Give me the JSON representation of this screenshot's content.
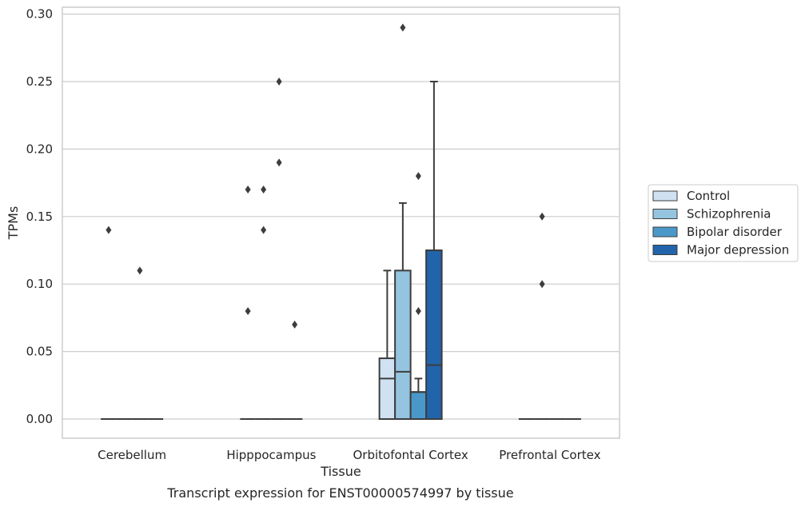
{
  "chart_data": {
    "type": "box",
    "title": "Transcript expression for ENST00000574997 by tissue",
    "xlabel": "Tissue",
    "ylabel": "TPMs",
    "ylim": [
      -0.015,
      0.3035
    ],
    "yticks": [
      "0.00",
      "0.05",
      "0.10",
      "0.15",
      "0.20",
      "0.25",
      "0.30"
    ],
    "ytick_values": [
      0,
      0.05,
      0.1,
      0.15,
      0.2,
      0.25,
      0.3
    ],
    "grid": "horizontal",
    "legend_position": "right",
    "categories": [
      "Cerebellum",
      "Hipppocampus",
      "Orbitofontal Cortex",
      "Prefrontal Cortex"
    ],
    "series": [
      {
        "name": "Control",
        "color": "#d0e1f2",
        "boxes": [
          {
            "q1": 0,
            "median": 0,
            "q3": 0,
            "whisker_low": 0,
            "whisker_high": 0,
            "outliers": [
              0.14
            ]
          },
          {
            "q1": 0,
            "median": 0,
            "q3": 0,
            "whisker_low": 0,
            "whisker_high": 0,
            "outliers": [
              0.17,
              0.08
            ]
          },
          {
            "q1": 0,
            "median": 0.03,
            "q3": 0.045,
            "whisker_low": 0,
            "whisker_high": 0.11,
            "outliers": []
          },
          {
            "q1": 0,
            "median": 0,
            "q3": 0,
            "whisker_low": 0,
            "whisker_high": 0,
            "outliers": []
          }
        ]
      },
      {
        "name": "Schizophrenia",
        "color": "#94c4df",
        "boxes": [
          {
            "q1": 0,
            "median": 0,
            "q3": 0,
            "whisker_low": 0,
            "whisker_high": 0,
            "outliers": []
          },
          {
            "q1": 0,
            "median": 0,
            "q3": 0,
            "whisker_low": 0,
            "whisker_high": 0,
            "outliers": [
              0.17,
              0.14
            ]
          },
          {
            "q1": 0,
            "median": 0.035,
            "q3": 0.11,
            "whisker_low": 0,
            "whisker_high": 0.16,
            "outliers": [
              0.29
            ]
          },
          {
            "q1": 0,
            "median": 0,
            "q3": 0,
            "whisker_low": 0,
            "whisker_high": 0,
            "outliers": [
              0.15,
              0.1
            ]
          }
        ]
      },
      {
        "name": "Bipolar disorder",
        "color": "#4a98c9",
        "boxes": [
          {
            "q1": 0,
            "median": 0,
            "q3": 0,
            "whisker_low": 0,
            "whisker_high": 0,
            "outliers": [
              0.11
            ]
          },
          {
            "q1": 0,
            "median": 0,
            "q3": 0,
            "whisker_low": 0,
            "whisker_high": 0,
            "outliers": [
              0.25,
              0.19
            ]
          },
          {
            "q1": 0,
            "median": 0.02,
            "q3": 0.02,
            "whisker_low": 0,
            "whisker_high": 0.03,
            "outliers": [
              0.18,
              0.08
            ]
          },
          {
            "q1": 0,
            "median": 0,
            "q3": 0,
            "whisker_low": 0,
            "whisker_high": 0,
            "outliers": []
          }
        ]
      },
      {
        "name": "Major depression",
        "color": "#2164ab",
        "boxes": [
          {
            "q1": 0,
            "median": 0,
            "q3": 0,
            "whisker_low": 0,
            "whisker_high": 0,
            "outliers": []
          },
          {
            "q1": 0,
            "median": 0,
            "q3": 0,
            "whisker_low": 0,
            "whisker_high": 0,
            "outliers": [
              0.07
            ]
          },
          {
            "q1": 0,
            "median": 0.04,
            "q3": 0.125,
            "whisker_low": 0,
            "whisker_high": 0.25,
            "outliers": []
          },
          {
            "q1": 0,
            "median": 0,
            "q3": 0,
            "whisker_low": 0,
            "whisker_high": 0,
            "outliers": []
          }
        ]
      }
    ]
  }
}
